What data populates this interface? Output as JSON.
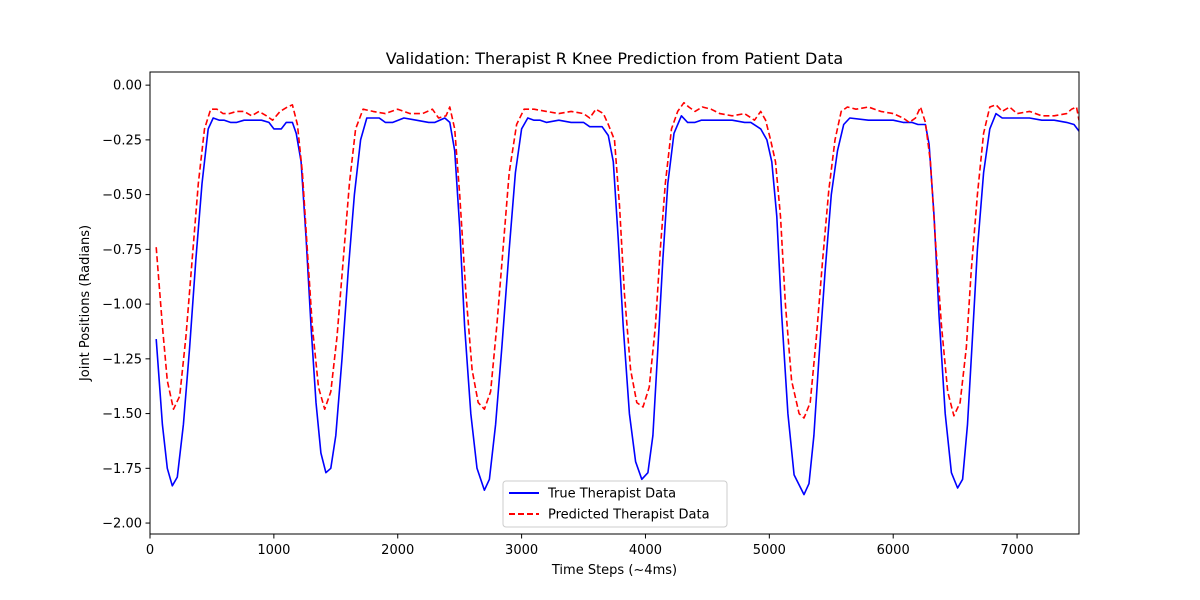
{
  "chart_data": {
    "type": "line",
    "title": "Validation: Therapist R Knee Prediction from Patient Data",
    "xlabel": "Time Steps (~4ms)",
    "ylabel": "Joint Positions (Radians)",
    "xlim": [
      0,
      7500
    ],
    "ylim": [
      -2.05,
      0.06
    ],
    "xticks": [
      0,
      1000,
      2000,
      3000,
      4000,
      5000,
      6000,
      7000
    ],
    "xtick_labels": [
      "0",
      "1000",
      "2000",
      "3000",
      "4000",
      "5000",
      "6000",
      "7000"
    ],
    "yticks": [
      0.0,
      -0.25,
      -0.5,
      -0.75,
      -1.0,
      -1.25,
      -1.5,
      -1.75,
      -2.0
    ],
    "ytick_labels": [
      "0.00",
      "−0.25",
      "−0.50",
      "−0.75",
      "−1.00",
      "−1.25",
      "−1.50",
      "−1.75",
      "−2.00"
    ],
    "grid": false,
    "legend_position": "bottom-center",
    "series": [
      {
        "name": "True Therapist Data",
        "color": "#0000ff",
        "style": "solid",
        "points": [
          [
            50,
            -1.16
          ],
          [
            100,
            -1.55
          ],
          [
            140,
            -1.75
          ],
          [
            180,
            -1.83
          ],
          [
            220,
            -1.79
          ],
          [
            270,
            -1.55
          ],
          [
            320,
            -1.2
          ],
          [
            370,
            -0.8
          ],
          [
            420,
            -0.45
          ],
          [
            470,
            -0.2
          ],
          [
            510,
            -0.15
          ],
          [
            560,
            -0.16
          ],
          [
            600,
            -0.16
          ],
          [
            650,
            -0.17
          ],
          [
            700,
            -0.17
          ],
          [
            760,
            -0.16
          ],
          [
            900,
            -0.16
          ],
          [
            960,
            -0.17
          ],
          [
            1000,
            -0.2
          ],
          [
            1060,
            -0.2
          ],
          [
            1100,
            -0.17
          ],
          [
            1150,
            -0.17
          ],
          [
            1180,
            -0.22
          ],
          [
            1220,
            -0.35
          ],
          [
            1260,
            -0.7
          ],
          [
            1300,
            -1.1
          ],
          [
            1340,
            -1.45
          ],
          [
            1380,
            -1.68
          ],
          [
            1420,
            -1.77
          ],
          [
            1460,
            -1.75
          ],
          [
            1500,
            -1.6
          ],
          [
            1550,
            -1.25
          ],
          [
            1600,
            -0.85
          ],
          [
            1650,
            -0.5
          ],
          [
            1700,
            -0.25
          ],
          [
            1750,
            -0.15
          ],
          [
            1850,
            -0.15
          ],
          [
            1900,
            -0.17
          ],
          [
            1960,
            -0.17
          ],
          [
            2050,
            -0.15
          ],
          [
            2150,
            -0.16
          ],
          [
            2250,
            -0.17
          ],
          [
            2300,
            -0.17
          ],
          [
            2380,
            -0.15
          ],
          [
            2420,
            -0.17
          ],
          [
            2460,
            -0.3
          ],
          [
            2500,
            -0.65
          ],
          [
            2540,
            -1.1
          ],
          [
            2590,
            -1.5
          ],
          [
            2640,
            -1.75
          ],
          [
            2700,
            -1.85
          ],
          [
            2740,
            -1.8
          ],
          [
            2790,
            -1.55
          ],
          [
            2840,
            -1.2
          ],
          [
            2900,
            -0.75
          ],
          [
            2950,
            -0.4
          ],
          [
            3000,
            -0.2
          ],
          [
            3050,
            -0.15
          ],
          [
            3100,
            -0.16
          ],
          [
            3150,
            -0.16
          ],
          [
            3200,
            -0.17
          ],
          [
            3300,
            -0.16
          ],
          [
            3400,
            -0.17
          ],
          [
            3500,
            -0.17
          ],
          [
            3550,
            -0.19
          ],
          [
            3600,
            -0.19
          ],
          [
            3650,
            -0.19
          ],
          [
            3700,
            -0.23
          ],
          [
            3740,
            -0.35
          ],
          [
            3780,
            -0.7
          ],
          [
            3820,
            -1.1
          ],
          [
            3870,
            -1.5
          ],
          [
            3920,
            -1.72
          ],
          [
            3970,
            -1.8
          ],
          [
            4020,
            -1.77
          ],
          [
            4060,
            -1.6
          ],
          [
            4100,
            -1.2
          ],
          [
            4140,
            -0.8
          ],
          [
            4180,
            -0.45
          ],
          [
            4230,
            -0.22
          ],
          [
            4290,
            -0.14
          ],
          [
            4340,
            -0.17
          ],
          [
            4400,
            -0.17
          ],
          [
            4450,
            -0.16
          ],
          [
            4600,
            -0.16
          ],
          [
            4700,
            -0.16
          ],
          [
            4800,
            -0.17
          ],
          [
            4850,
            -0.17
          ],
          [
            4930,
            -0.2
          ],
          [
            4980,
            -0.25
          ],
          [
            5020,
            -0.35
          ],
          [
            5060,
            -0.6
          ],
          [
            5100,
            -1.05
          ],
          [
            5150,
            -1.5
          ],
          [
            5200,
            -1.78
          ],
          [
            5280,
            -1.87
          ],
          [
            5320,
            -1.82
          ],
          [
            5360,
            -1.6
          ],
          [
            5400,
            -1.25
          ],
          [
            5450,
            -0.85
          ],
          [
            5500,
            -0.5
          ],
          [
            5550,
            -0.3
          ],
          [
            5600,
            -0.18
          ],
          [
            5650,
            -0.15
          ],
          [
            5800,
            -0.16
          ],
          [
            5900,
            -0.16
          ],
          [
            6000,
            -0.16
          ],
          [
            6080,
            -0.17
          ],
          [
            6150,
            -0.17
          ],
          [
            6200,
            -0.18
          ],
          [
            6260,
            -0.18
          ],
          [
            6290,
            -0.27
          ],
          [
            6330,
            -0.6
          ],
          [
            6370,
            -1.05
          ],
          [
            6420,
            -1.5
          ],
          [
            6470,
            -1.77
          ],
          [
            6520,
            -1.84
          ],
          [
            6560,
            -1.8
          ],
          [
            6600,
            -1.55
          ],
          [
            6640,
            -1.15
          ],
          [
            6680,
            -0.75
          ],
          [
            6730,
            -0.4
          ],
          [
            6780,
            -0.2
          ],
          [
            6830,
            -0.13
          ],
          [
            6880,
            -0.15
          ],
          [
            7000,
            -0.15
          ],
          [
            7100,
            -0.15
          ],
          [
            7200,
            -0.16
          ],
          [
            7300,
            -0.16
          ],
          [
            7400,
            -0.17
          ],
          [
            7460,
            -0.18
          ],
          [
            7500,
            -0.21
          ]
        ]
      },
      {
        "name": "Predicted Therapist Data",
        "color": "#ff0000",
        "style": "dashed",
        "points": [
          [
            50,
            -0.74
          ],
          [
            100,
            -1.1
          ],
          [
            140,
            -1.35
          ],
          [
            190,
            -1.48
          ],
          [
            240,
            -1.42
          ],
          [
            290,
            -1.15
          ],
          [
            340,
            -0.8
          ],
          [
            390,
            -0.45
          ],
          [
            440,
            -0.2
          ],
          [
            490,
            -0.11
          ],
          [
            540,
            -0.11
          ],
          [
            590,
            -0.13
          ],
          [
            640,
            -0.13
          ],
          [
            700,
            -0.12
          ],
          [
            760,
            -0.12
          ],
          [
            820,
            -0.14
          ],
          [
            880,
            -0.12
          ],
          [
            940,
            -0.14
          ],
          [
            990,
            -0.16
          ],
          [
            1050,
            -0.12
          ],
          [
            1110,
            -0.1
          ],
          [
            1150,
            -0.09
          ],
          [
            1190,
            -0.18
          ],
          [
            1230,
            -0.4
          ],
          [
            1270,
            -0.75
          ],
          [
            1310,
            -1.1
          ],
          [
            1360,
            -1.38
          ],
          [
            1410,
            -1.48
          ],
          [
            1460,
            -1.4
          ],
          [
            1510,
            -1.15
          ],
          [
            1560,
            -0.8
          ],
          [
            1610,
            -0.45
          ],
          [
            1660,
            -0.2
          ],
          [
            1720,
            -0.11
          ],
          [
            1800,
            -0.12
          ],
          [
            1900,
            -0.13
          ],
          [
            2000,
            -0.11
          ],
          [
            2100,
            -0.13
          ],
          [
            2200,
            -0.13
          ],
          [
            2280,
            -0.11
          ],
          [
            2330,
            -0.15
          ],
          [
            2390,
            -0.14
          ],
          [
            2420,
            -0.1
          ],
          [
            2460,
            -0.2
          ],
          [
            2500,
            -0.5
          ],
          [
            2550,
            -0.95
          ],
          [
            2600,
            -1.3
          ],
          [
            2650,
            -1.45
          ],
          [
            2700,
            -1.48
          ],
          [
            2750,
            -1.4
          ],
          [
            2800,
            -1.1
          ],
          [
            2850,
            -0.75
          ],
          [
            2900,
            -0.4
          ],
          [
            2960,
            -0.18
          ],
          [
            3020,
            -0.11
          ],
          [
            3100,
            -0.11
          ],
          [
            3200,
            -0.12
          ],
          [
            3300,
            -0.13
          ],
          [
            3400,
            -0.12
          ],
          [
            3500,
            -0.13
          ],
          [
            3550,
            -0.15
          ],
          [
            3600,
            -0.11
          ],
          [
            3660,
            -0.13
          ],
          [
            3700,
            -0.18
          ],
          [
            3750,
            -0.25
          ],
          [
            3790,
            -0.55
          ],
          [
            3830,
            -0.95
          ],
          [
            3880,
            -1.3
          ],
          [
            3930,
            -1.45
          ],
          [
            3980,
            -1.47
          ],
          [
            4030,
            -1.38
          ],
          [
            4080,
            -1.1
          ],
          [
            4120,
            -0.75
          ],
          [
            4160,
            -0.45
          ],
          [
            4210,
            -0.2
          ],
          [
            4260,
            -0.12
          ],
          [
            4310,
            -0.08
          ],
          [
            4350,
            -0.1
          ],
          [
            4400,
            -0.12
          ],
          [
            4460,
            -0.1
          ],
          [
            4530,
            -0.11
          ],
          [
            4600,
            -0.13
          ],
          [
            4700,
            -0.14
          ],
          [
            4800,
            -0.13
          ],
          [
            4880,
            -0.16
          ],
          [
            4930,
            -0.12
          ],
          [
            4970,
            -0.16
          ],
          [
            5010,
            -0.25
          ],
          [
            5050,
            -0.35
          ],
          [
            5090,
            -0.6
          ],
          [
            5130,
            -1.0
          ],
          [
            5180,
            -1.35
          ],
          [
            5240,
            -1.5
          ],
          [
            5280,
            -1.52
          ],
          [
            5330,
            -1.45
          ],
          [
            5380,
            -1.15
          ],
          [
            5430,
            -0.8
          ],
          [
            5480,
            -0.48
          ],
          [
            5530,
            -0.25
          ],
          [
            5580,
            -0.12
          ],
          [
            5630,
            -0.1
          ],
          [
            5700,
            -0.11
          ],
          [
            5800,
            -0.1
          ],
          [
            5900,
            -0.12
          ],
          [
            6000,
            -0.13
          ],
          [
            6080,
            -0.15
          ],
          [
            6130,
            -0.17
          ],
          [
            6180,
            -0.15
          ],
          [
            6220,
            -0.1
          ],
          [
            6260,
            -0.17
          ],
          [
            6300,
            -0.35
          ],
          [
            6340,
            -0.7
          ],
          [
            6390,
            -1.1
          ],
          [
            6440,
            -1.4
          ],
          [
            6490,
            -1.51
          ],
          [
            6540,
            -1.45
          ],
          [
            6590,
            -1.2
          ],
          [
            6630,
            -0.85
          ],
          [
            6680,
            -0.5
          ],
          [
            6730,
            -0.22
          ],
          [
            6780,
            -0.1
          ],
          [
            6830,
            -0.09
          ],
          [
            6880,
            -0.12
          ],
          [
            6940,
            -0.1
          ],
          [
            7000,
            -0.13
          ],
          [
            7100,
            -0.12
          ],
          [
            7200,
            -0.14
          ],
          [
            7300,
            -0.14
          ],
          [
            7400,
            -0.13
          ],
          [
            7440,
            -0.11
          ],
          [
            7480,
            -0.1
          ],
          [
            7500,
            -0.16
          ]
        ]
      }
    ]
  }
}
